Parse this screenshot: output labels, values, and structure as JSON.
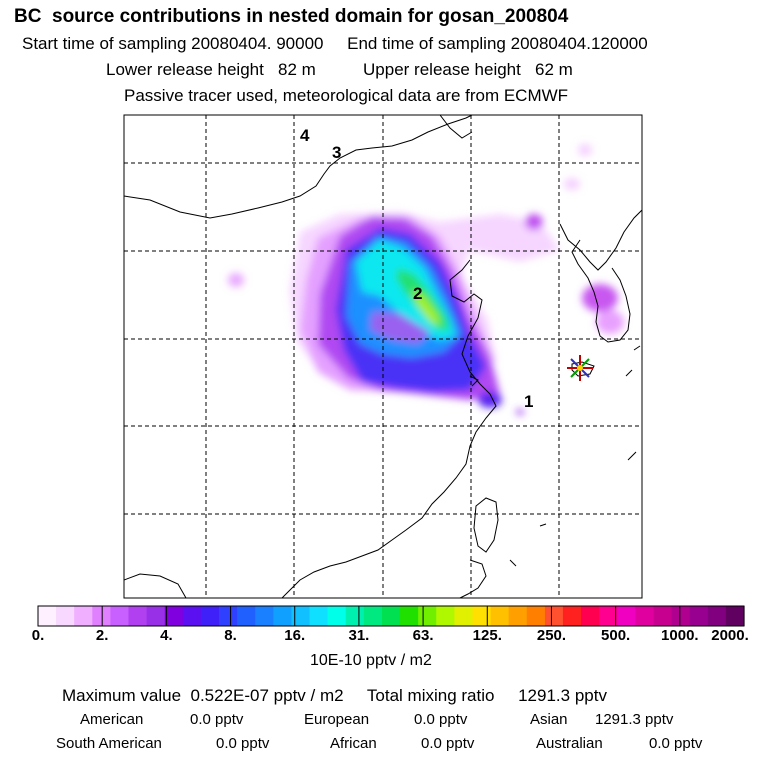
{
  "header": {
    "title": "BC  source contributions in nested domain for gosan_200804",
    "start_label": "Start time of sampling",
    "start_value": "20080404. 90000",
    "end_label": "End time of sampling",
    "end_value": "20080404.120000",
    "lower_label": "Lower release height",
    "lower_value": "82 m",
    "upper_label": "Upper release height",
    "upper_value": "62 m",
    "note": "Passive tracer used, meteorological data are from ECMWF"
  },
  "chart_data": {
    "type": "heatmap",
    "title": "BC  source contributions in nested domain for gosan_200804",
    "map_labels": [
      "4",
      "3",
      "2",
      "1"
    ],
    "receptor_marker": "star",
    "colorbar": {
      "tick_labels": [
        "0.",
        "2.",
        "4.",
        "8.",
        "16.",
        "31.",
        "63.",
        "125.",
        "250.",
        "500.",
        "1000.",
        "2000."
      ],
      "unit": "10E-10 pptv / m2",
      "colors": [
        "#fff0ff",
        "#f8d8ff",
        "#f0b0ff",
        "#e080ff",
        "#c860ff",
        "#b040f0",
        "#9830e8",
        "#8000e0",
        "#5a10f0",
        "#4020f8",
        "#3040ff",
        "#2060ff",
        "#1a80ff",
        "#10a0ff",
        "#10c0ff",
        "#10e0ff",
        "#00ffe8",
        "#00f0b0",
        "#00e880",
        "#00e050",
        "#20e000",
        "#70f000",
        "#b0f800",
        "#e0f000",
        "#ffe000",
        "#ffc000",
        "#ffa000",
        "#ff8000",
        "#ff5030",
        "#ff2020",
        "#ff0050",
        "#ff0090",
        "#f000c0",
        "#e000a0",
        "#c80090",
        "#b00090",
        "#980090",
        "#800080",
        "#600060"
      ]
    },
    "max_value_label": "Maximum value",
    "max_value": "0.522E-07 pptv / m2",
    "total_label": "Total mixing ratio",
    "total_value": "1291.3 pptv",
    "regions": [
      {
        "name": "American",
        "value": "0.0 pptv"
      },
      {
        "name": "European",
        "value": "0.0 pptv"
      },
      {
        "name": "Asian",
        "value": "1291.3 pptv"
      },
      {
        "name": "South American",
        "value": "0.0 pptv"
      },
      {
        "name": "African",
        "value": "0.0 pptv"
      },
      {
        "name": "Australian",
        "value": "0.0 pptv"
      }
    ]
  }
}
